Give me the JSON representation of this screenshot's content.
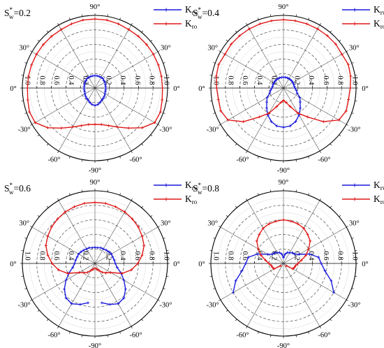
{
  "chart_data": [
    {
      "type": "polar-line",
      "panel_label": "S*w=0.2",
      "s_label": "S",
      "s_sup": "*",
      "s_sub": "w",
      "s_val": "=0.2",
      "angle_labels": [
        "90°",
        "30°",
        "0°",
        "-30°",
        "-60°",
        "-90°",
        "-60°",
        "-30°",
        "0°",
        "30°"
      ],
      "radial_ticks": [
        "0.2",
        "0.4",
        "0.6",
        "0.8",
        "1.0"
      ],
      "rlim": [
        0,
        1.0
      ],
      "legend": [
        {
          "main": "K",
          "sub": "rw",
          "color": "#1a1adc"
        },
        {
          "main": "K",
          "sub": "ro",
          "color": "#e01818"
        }
      ],
      "series": [
        {
          "name": "Krw",
          "color": "#1a1adc",
          "theta": [
            -90,
            -80,
            -70,
            -60,
            -50,
            -40,
            -30,
            -20,
            -10,
            0,
            10,
            20,
            30,
            40,
            50,
            60,
            70,
            80,
            90,
            100,
            110,
            120,
            130,
            140,
            150,
            160,
            170,
            180,
            190,
            200,
            210,
            220,
            230,
            240,
            250,
            260,
            270
          ],
          "r": [
            0.24,
            0.23,
            0.21,
            0.19,
            0.18,
            0.17,
            0.16,
            0.15,
            0.15,
            0.15,
            0.15,
            0.15,
            0.16,
            0.16,
            0.17,
            0.17,
            0.17,
            0.17,
            0.17,
            0.17,
            0.17,
            0.17,
            0.17,
            0.16,
            0.16,
            0.15,
            0.15,
            0.15,
            0.15,
            0.15,
            0.16,
            0.17,
            0.18,
            0.19,
            0.21,
            0.23,
            0.24
          ]
        },
        {
          "name": "Kro",
          "color": "#e01818",
          "theta": [
            -90,
            -80,
            -70,
            -60,
            -50,
            -40,
            -30,
            -20,
            -10,
            0,
            10,
            20,
            30,
            40,
            50,
            60,
            70,
            80,
            90,
            100,
            110,
            120,
            130,
            140,
            150,
            160,
            170,
            180,
            190,
            200,
            210,
            220,
            230,
            240,
            250,
            260,
            270
          ],
          "r": [
            0.5,
            0.51,
            0.55,
            0.62,
            0.72,
            0.85,
            0.95,
            0.96,
            0.94,
            0.93,
            0.93,
            0.93,
            0.93,
            0.93,
            0.93,
            0.93,
            0.94,
            0.95,
            0.95,
            0.95,
            0.94,
            0.93,
            0.93,
            0.93,
            0.93,
            0.93,
            0.93,
            0.93,
            0.94,
            0.96,
            0.95,
            0.85,
            0.72,
            0.62,
            0.55,
            0.51,
            0.5
          ]
        }
      ]
    },
    {
      "type": "polar-line",
      "panel_label": "S*w=0.4",
      "s_label": "S",
      "s_sup": "*",
      "s_sub": "w",
      "s_val": "=0.4",
      "angle_labels": [
        "90°",
        "30°",
        "0°",
        "-30°",
        "-60°",
        "-90°",
        "-60°",
        "-30°",
        "0°",
        "30°"
      ],
      "radial_ticks": [
        "0.2",
        "0.4",
        "0.6",
        "0.8",
        "1.0"
      ],
      "rlim": [
        0,
        1.0
      ],
      "legend": [
        {
          "main": "K",
          "sub": "rw",
          "color": "#1a1adc"
        },
        {
          "main": "K",
          "sub": "ro",
          "color": "#e01818"
        }
      ],
      "series": [
        {
          "name": "Krw",
          "color": "#1a1adc",
          "theta": [
            -90,
            -80,
            -70,
            -60,
            -50,
            -40,
            -30,
            -20,
            -10,
            0,
            10,
            20,
            30,
            40,
            50,
            60,
            70,
            80,
            90,
            100,
            110,
            120,
            130,
            140,
            150,
            160,
            170,
            180,
            190,
            200,
            210,
            220,
            230,
            240,
            250,
            260,
            270
          ],
          "r": [
            0.54,
            0.53,
            0.49,
            0.43,
            0.36,
            0.3,
            0.26,
            0.2,
            0.18,
            0.16,
            0.15,
            0.15,
            0.15,
            0.15,
            0.15,
            0.15,
            0.15,
            0.15,
            0.15,
            0.15,
            0.15,
            0.15,
            0.15,
            0.15,
            0.15,
            0.15,
            0.15,
            0.16,
            0.18,
            0.2,
            0.26,
            0.3,
            0.36,
            0.43,
            0.49,
            0.53,
            0.54
          ]
        },
        {
          "name": "Kro",
          "color": "#e01818",
          "theta": [
            -90,
            -80,
            -70,
            -60,
            -50,
            -40,
            -30,
            -20,
            -10,
            0,
            10,
            20,
            30,
            40,
            50,
            60,
            70,
            80,
            90,
            100,
            110,
            120,
            130,
            140,
            150,
            160,
            170,
            180,
            190,
            200,
            210,
            220,
            230,
            240,
            250,
            260,
            270
          ],
          "r": [
            0.17,
            0.2,
            0.27,
            0.4,
            0.52,
            0.72,
            0.88,
            0.92,
            0.91,
            0.92,
            0.94,
            0.95,
            0.93,
            0.94,
            0.94,
            0.94,
            0.94,
            0.94,
            0.94,
            0.94,
            0.94,
            0.94,
            0.94,
            0.94,
            0.93,
            0.95,
            0.94,
            0.92,
            0.91,
            0.92,
            0.88,
            0.72,
            0.52,
            0.4,
            0.27,
            0.2,
            0.17
          ]
        }
      ]
    },
    {
      "type": "polar-line",
      "panel_label": "S*w=0.6",
      "s_label": "S",
      "s_sup": "*",
      "s_sub": "w",
      "s_val": "=0.6",
      "angle_labels": [
        "90°",
        "30°",
        "0°",
        "-30°",
        "-60°",
        "-90°",
        "-60°",
        "-30°",
        "0°",
        "30°"
      ],
      "radial_ticks": [
        "0.2",
        "0.4",
        "0.6",
        "0.8",
        "1.0"
      ],
      "rlim": [
        0,
        1.0
      ],
      "legend": [
        {
          "main": "K",
          "sub": "rw",
          "color": "#1a1adc"
        },
        {
          "main": "K",
          "sub": "ro",
          "color": "#e01818"
        }
      ],
      "series": [
        {
          "name": "Krw",
          "color": "#1a1adc",
          "theta": [
            -90,
            -80,
            -70,
            -60,
            -50,
            -40,
            -30,
            -20,
            -10,
            0,
            10,
            20,
            30,
            40,
            50,
            60,
            70,
            80,
            90,
            100,
            110,
            120,
            130,
            140,
            150,
            160,
            170,
            180,
            190,
            200,
            210,
            220,
            230,
            240,
            250,
            260,
            270
          ],
          "r": [
            0.0,
            0.55,
            0.6,
            0.64,
            0.62,
            0.55,
            0.46,
            0.38,
            0.31,
            0.28,
            0.27,
            0.26,
            0.26,
            0.25,
            0.24,
            0.23,
            0.23,
            0.22,
            0.22,
            0.22,
            0.23,
            0.23,
            0.24,
            0.25,
            0.26,
            0.26,
            0.27,
            0.28,
            0.31,
            0.38,
            0.46,
            0.55,
            0.62,
            0.64,
            0.6,
            0.55,
            0.0
          ]
        },
        {
          "name": "Kro",
          "color": "#e01818",
          "theta": [
            -90,
            -80,
            -70,
            -60,
            -50,
            -40,
            -30,
            -20,
            -10,
            0,
            10,
            20,
            30,
            40,
            50,
            60,
            70,
            80,
            90,
            100,
            110,
            120,
            130,
            140,
            150,
            160,
            170,
            180,
            190,
            200,
            210,
            220,
            230,
            240,
            250,
            260,
            270
          ],
          "r": [
            0.0,
            0.07,
            0.09,
            0.11,
            0.16,
            0.2,
            0.25,
            0.4,
            0.51,
            0.59,
            0.66,
            0.72,
            0.75,
            0.78,
            0.8,
            0.82,
            0.83,
            0.84,
            0.84,
            0.84,
            0.83,
            0.82,
            0.8,
            0.78,
            0.75,
            0.72,
            0.66,
            0.59,
            0.51,
            0.4,
            0.25,
            0.2,
            0.16,
            0.11,
            0.09,
            0.07,
            0.0
          ]
        }
      ]
    },
    {
      "type": "polar-line",
      "panel_label": "S*w=0.8",
      "s_label": "S",
      "s_sup": "*",
      "s_sub": "w",
      "s_val": "=0.8",
      "angle_labels": [
        "90°",
        "30°",
        "0°",
        "-30°",
        "-60°",
        "-90°",
        "-60°",
        "-30°",
        "0°",
        "30°"
      ],
      "radial_ticks": [
        "0.2",
        "0.4",
        "0.6",
        "0.8",
        "1.0"
      ],
      "rlim": [
        0,
        1.0
      ],
      "legend": [
        {
          "main": "K",
          "sub": "rw",
          "color": "#1a1adc"
        },
        {
          "main": "K",
          "sub": "ro",
          "color": "#e01818"
        }
      ],
      "series": [
        {
          "name": "Krw",
          "color": "#1a1adc",
          "theta": [
            -90,
            -80,
            -70,
            -60,
            -50,
            -40,
            -30,
            -20,
            -10,
            0,
            10,
            20,
            30,
            40,
            50,
            60,
            70,
            80,
            90,
            100,
            110,
            120,
            130,
            140,
            150,
            160,
            170,
            180,
            190,
            200,
            210,
            220,
            230,
            240,
            250,
            260,
            270
          ],
          "r": [
            0.0,
            0.0,
            0.0,
            0.0,
            0.0,
            0.0,
            0.8,
            0.7,
            0.58,
            0.52,
            0.49,
            0.38,
            0.25,
            0.2,
            0.19,
            0.17,
            0.16,
            0.13,
            0.08,
            0.13,
            0.16,
            0.17,
            0.19,
            0.2,
            0.25,
            0.38,
            0.49,
            0.52,
            0.58,
            0.7,
            0.8,
            0.0,
            0.0,
            0.0,
            0.0,
            0.0,
            0.0
          ]
        },
        {
          "name": "Kro",
          "color": "#e01818",
          "theta": [
            -90,
            -80,
            -70,
            -60,
            -50,
            -40,
            -30,
            -20,
            -10,
            0,
            10,
            20,
            30,
            40,
            50,
            60,
            70,
            80,
            90,
            100,
            110,
            120,
            130,
            140,
            150,
            160,
            170,
            180,
            190,
            200,
            210,
            220,
            230,
            240,
            250,
            260,
            270
          ],
          "r": [
            0.0,
            0.0,
            0.0,
            0.0,
            0.0,
            0.05,
            0.15,
            0.16,
            0.17,
            0.2,
            0.25,
            0.33,
            0.4,
            0.48,
            0.52,
            0.56,
            0.58,
            0.59,
            0.6,
            0.59,
            0.58,
            0.56,
            0.52,
            0.48,
            0.4,
            0.33,
            0.25,
            0.2,
            0.17,
            0.16,
            0.15,
            0.05,
            0.0,
            0.0,
            0.0,
            0.0,
            0.0
          ]
        }
      ]
    }
  ]
}
